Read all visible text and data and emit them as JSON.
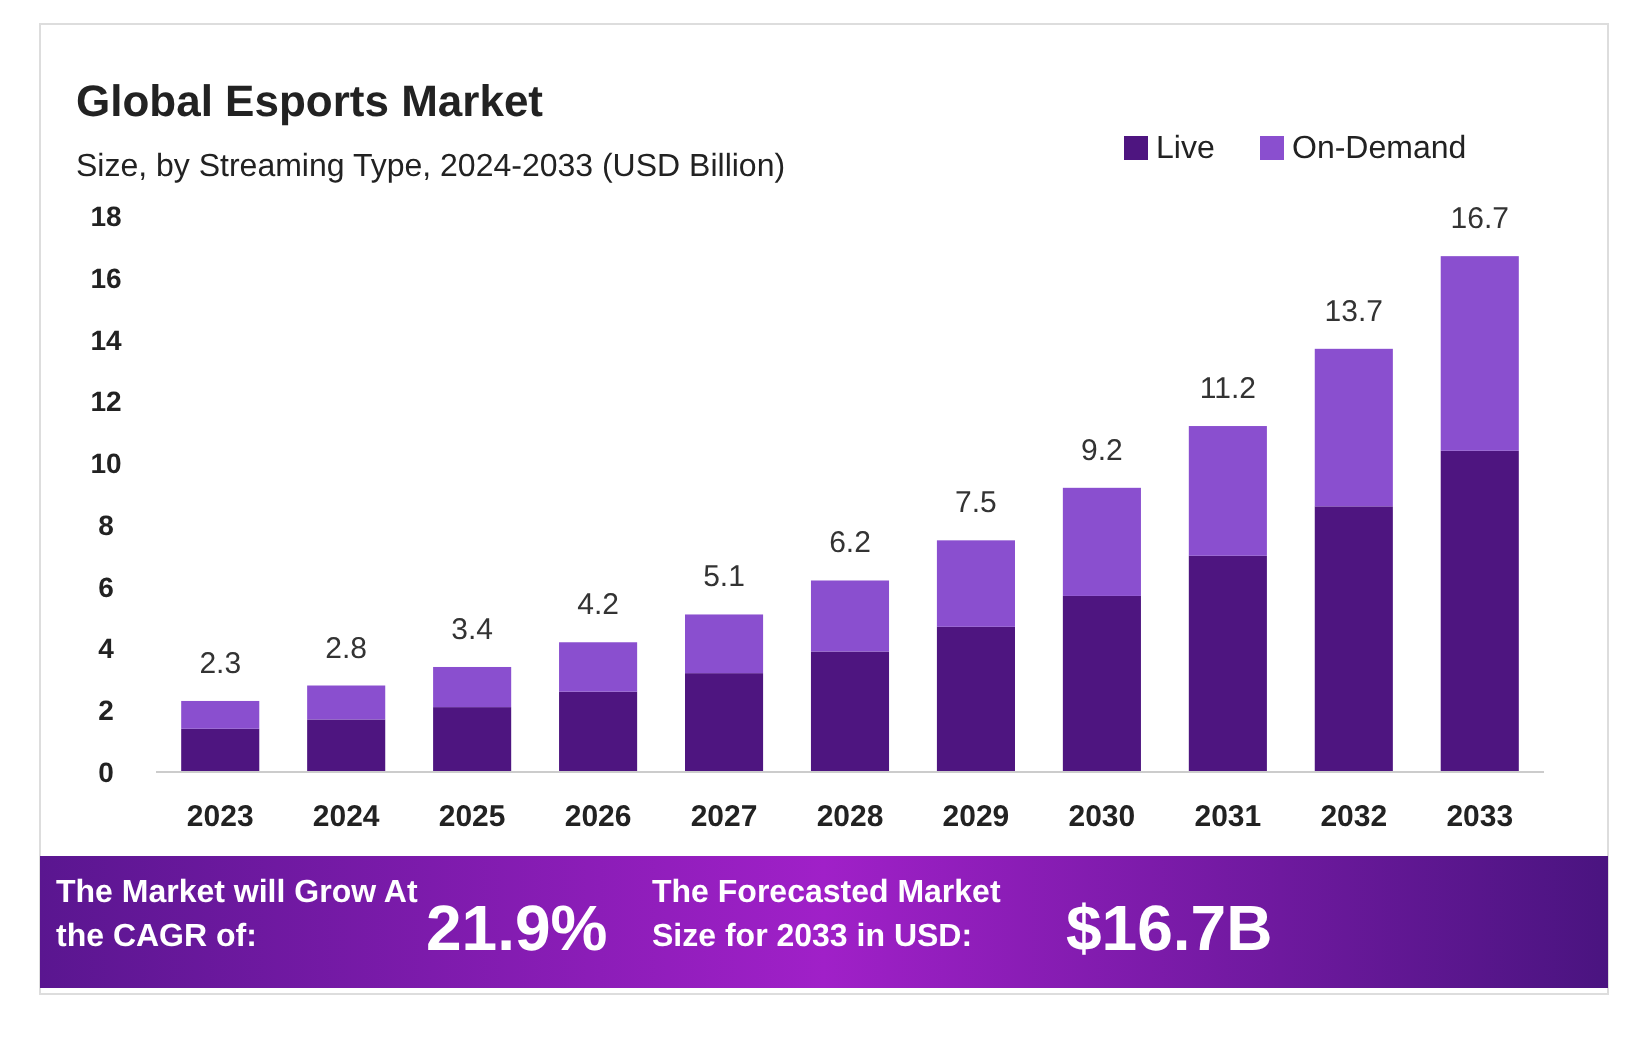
{
  "chart_data": {
    "type": "bar",
    "title": "Global Esports Market",
    "subtitle": "Size, by Streaming Type, 2024-2033 (USD Billion)",
    "categories": [
      "2023",
      "2024",
      "2025",
      "2026",
      "2027",
      "2028",
      "2029",
      "2030",
      "2031",
      "2032",
      "2033"
    ],
    "series": [
      {
        "name": "Live",
        "color": "#4e1580",
        "values": [
          1.4,
          1.7,
          2.1,
          2.6,
          3.2,
          3.9,
          4.7,
          5.7,
          7.0,
          8.6,
          10.4
        ]
      },
      {
        "name": "On-Demand",
        "color": "#8a4fcf",
        "values": [
          0.9,
          1.1,
          1.3,
          1.6,
          1.9,
          2.3,
          2.8,
          3.5,
          4.2,
          5.1,
          6.3
        ]
      }
    ],
    "stacked": true,
    "totals": [
      "2.3",
      "2.8",
      "3.4",
      "4.2",
      "5.1",
      "6.2",
      "7.5",
      "9.2",
      "11.2",
      "13.7",
      "16.7"
    ],
    "ylim": [
      0,
      18
    ],
    "yticks": [
      0,
      2,
      4,
      6,
      8,
      10,
      12,
      14,
      16,
      18
    ],
    "grid": false,
    "legend": "top right",
    "annotations": [
      "The Market will Grow At the CAGR of:",
      "21.9%",
      "The Forecasted Market Size for 2033 in USD:",
      "$16.7B"
    ]
  }
}
